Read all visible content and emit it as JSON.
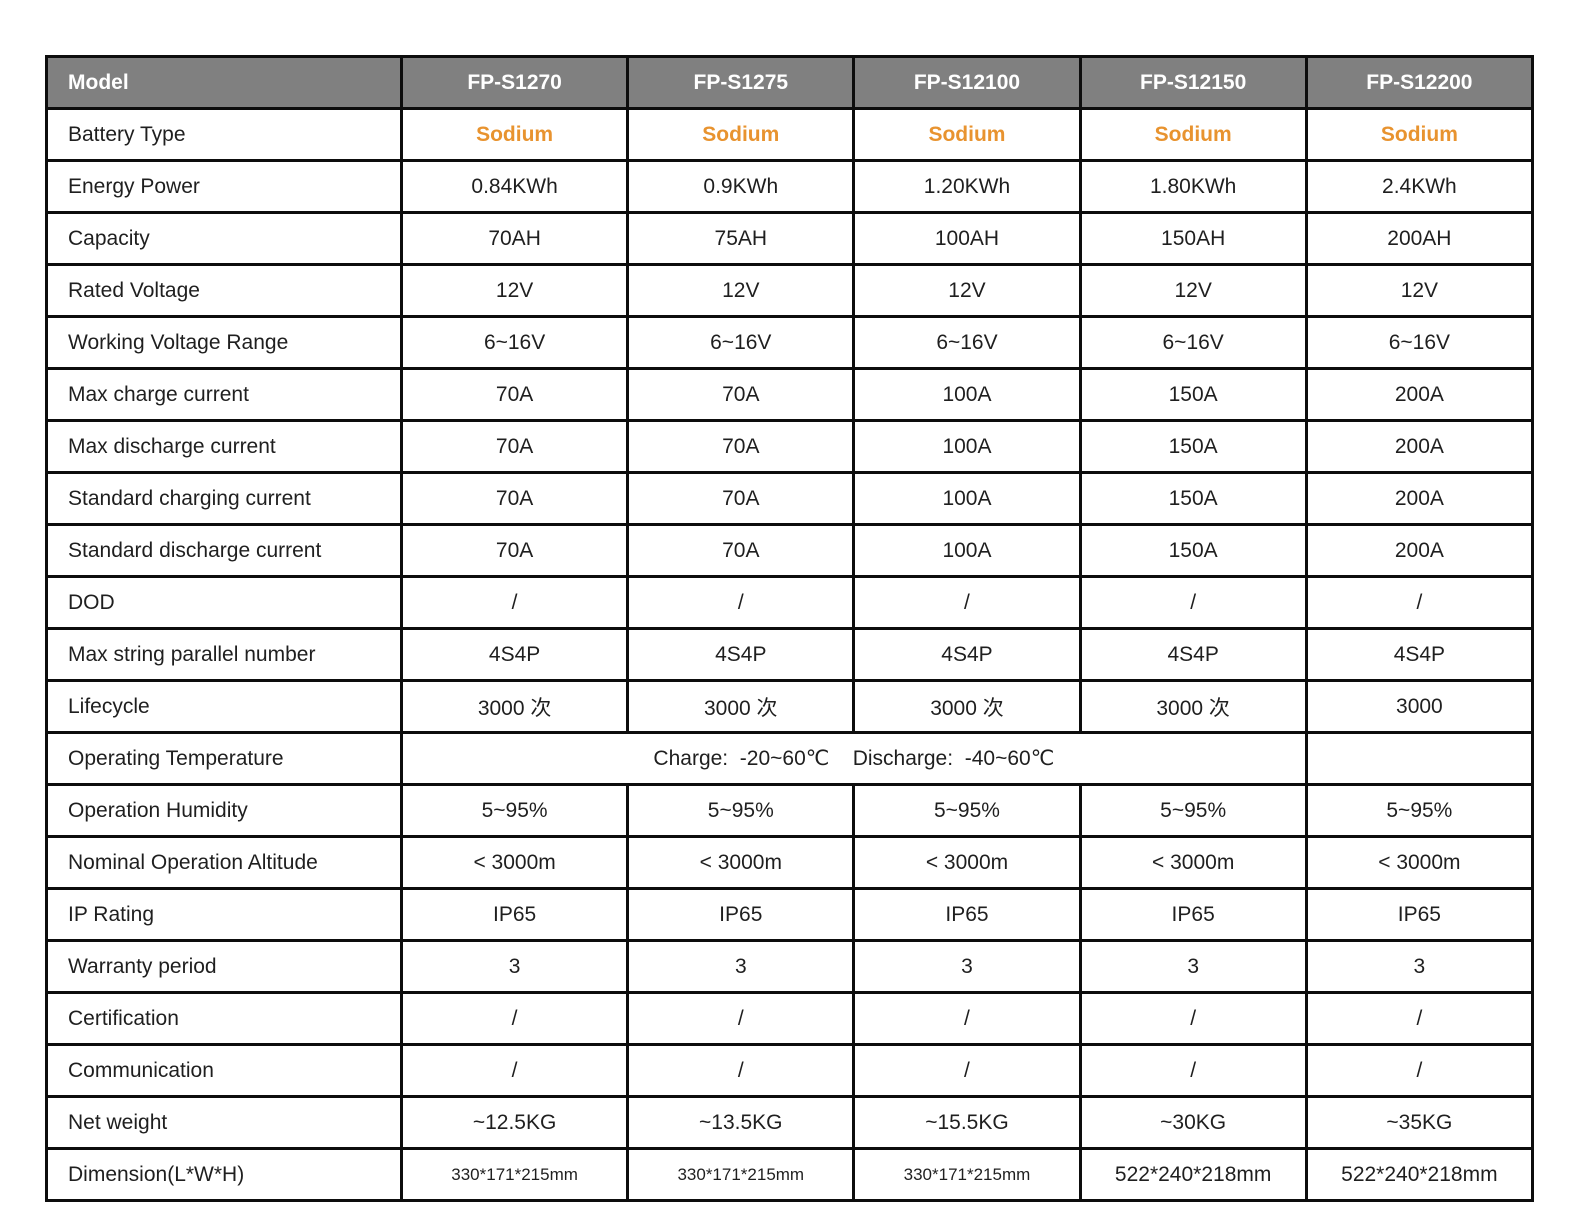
{
  "colors": {
    "header_bg": "#808080",
    "header_text": "#ffffff",
    "accent_orange": "#e8932f",
    "border": "#0d0d0d",
    "body_text": "#1f1f1f",
    "cell_bg": "#ffffff"
  },
  "table": {
    "columns": [
      "Model",
      "FP-S1270",
      "FP-S1275",
      "FP-S12100",
      "FP-S12150",
      "FP-S12200"
    ],
    "rows": [
      {
        "key": "battery-type",
        "label": "Battery Type",
        "values": [
          "Sodium",
          "Sodium",
          "Sodium",
          "Sodium",
          "Sodium"
        ]
      },
      {
        "key": "energy-power",
        "label": "Energy Power",
        "values": [
          "0.84KWh",
          "0.9KWh",
          "1.20KWh",
          "1.80KWh",
          "2.4KWh"
        ]
      },
      {
        "key": "capacity",
        "label": "Capacity",
        "values": [
          "70AH",
          "75AH",
          "100AH",
          "150AH",
          "200AH"
        ]
      },
      {
        "key": "rated-voltage",
        "label": "Rated Voltage",
        "values": [
          "12V",
          "12V",
          "12V",
          "12V",
          "12V"
        ]
      },
      {
        "key": "working-voltage-range",
        "label": "Working Voltage Range",
        "values": [
          "6~16V",
          "6~16V",
          "6~16V",
          "6~16V",
          "6~16V"
        ]
      },
      {
        "key": "max-charge-current",
        "label": "Max charge current",
        "values": [
          "70A",
          "70A",
          "100A",
          "150A",
          "200A"
        ]
      },
      {
        "key": "max-discharge-current",
        "label": "Max discharge current",
        "values": [
          "70A",
          "70A",
          "100A",
          "150A",
          "200A"
        ]
      },
      {
        "key": "standard-charging-current",
        "label": "Standard charging current",
        "values": [
          "70A",
          "70A",
          "100A",
          "150A",
          "200A"
        ]
      },
      {
        "key": "standard-discharge-current",
        "label": "Standard discharge current",
        "values": [
          "70A",
          "70A",
          "100A",
          "150A",
          "200A"
        ]
      },
      {
        "key": "dod",
        "label": "DOD",
        "values": [
          "/",
          "/",
          "/",
          "/",
          "/"
        ]
      },
      {
        "key": "max-string-parallel-number",
        "label": "Max string parallel number",
        "values": [
          "4S4P",
          "4S4P",
          "4S4P",
          "4S4P",
          "4S4P"
        ]
      },
      {
        "key": "lifecycle",
        "label": "Lifecycle",
        "values": [
          "3000 次",
          "3000 次",
          "3000 次",
          "3000 次",
          "3000"
        ]
      },
      {
        "key": "operating-temperature",
        "label": "Operating Temperature",
        "merged_value": {
          "colspan": 4,
          "text": "Charge:  -20~60℃    Discharge:  -40~60℃"
        },
        "values": [
          ""
        ]
      },
      {
        "key": "operation-humidity",
        "label": "Operation Humidity",
        "values": [
          "5~95%",
          "5~95%",
          "5~95%",
          "5~95%",
          "5~95%"
        ]
      },
      {
        "key": "nominal-operation-altitude",
        "label": "Nominal Operation Altitude",
        "values": [
          "< 3000m",
          "< 3000m",
          "< 3000m",
          "< 3000m",
          "< 3000m"
        ]
      },
      {
        "key": "ip-rating",
        "label": "IP Rating",
        "values": [
          "IP65",
          "IP65",
          "IP65",
          "IP65",
          "IP65"
        ]
      },
      {
        "key": "warranty-period",
        "label": "Warranty period",
        "values": [
          "3",
          "3",
          "3",
          "3",
          "3"
        ]
      },
      {
        "key": "certification",
        "label": "Certification",
        "values": [
          "/",
          "/",
          "/",
          "/",
          "/"
        ]
      },
      {
        "key": "communication",
        "label": "Communication",
        "values": [
          "/",
          "/",
          "/",
          "/",
          "/"
        ]
      },
      {
        "key": "net-weight",
        "label": "Net weight",
        "values": [
          "~12.5KG",
          "~13.5KG",
          "~15.5KG",
          "~30KG",
          "~35KG"
        ]
      },
      {
        "key": "dimension",
        "label": "Dimension(L*W*H)",
        "values": [
          "330*171*215mm",
          "330*171*215mm",
          "330*171*215mm",
          "522*240*218mm",
          "522*240*218mm"
        ],
        "small_cols": [
          0,
          1,
          2
        ]
      }
    ]
  }
}
